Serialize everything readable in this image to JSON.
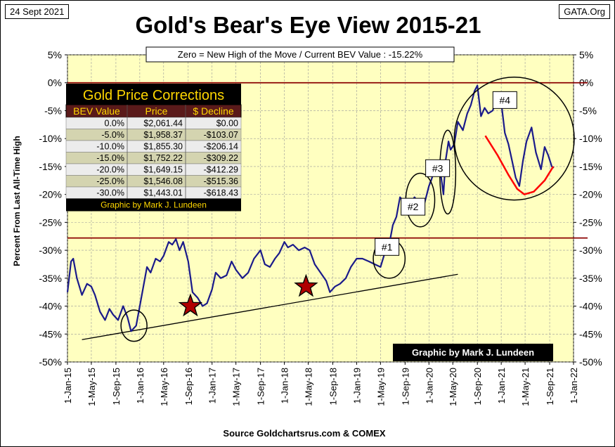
{
  "header": {
    "date": "24 Sept 2021",
    "site": "GATA.Org",
    "title": "Gold's Bear's Eye View 2015-21",
    "subtitle": "Zero = New High of the Move / Current  BEV Value : -15.22%"
  },
  "source": "Source Goldchartsrus.com & COMEX",
  "credit": "Graphic by Mark J. Lundeen",
  "colors": {
    "plot_bg": "#ffffc0",
    "series": "#1a1a8a",
    "resistance": "#8b0000",
    "red_curve": "#ff0000",
    "star": "#b00000",
    "table_bg": "#000000",
    "table_title": "#ffd700",
    "table_header_bg": "#5a1a1a",
    "table_row_light": "#ececec",
    "table_row_dark": "#d4d4b0"
  },
  "table": {
    "title": "Gold Price Corrections",
    "headers": [
      "BEV Value",
      "Price",
      "$ Decline"
    ],
    "rows": [
      [
        "0.0%",
        "$2,061.44",
        "$0.00"
      ],
      [
        "-5.0%",
        "$1,958.37",
        "-$103.07"
      ],
      [
        "-10.0%",
        "$1,855.30",
        "-$206.14"
      ],
      [
        "-15.0%",
        "$1,752.22",
        "-$309.22"
      ],
      [
        "-20.0%",
        "$1,649.15",
        "-$412.29"
      ],
      [
        "-25.0%",
        "$1,546.08",
        "-$515.36"
      ],
      [
        "-30.0%",
        "$1,443.01",
        "-$618.43"
      ]
    ],
    "footer": "Graphic by Mark J. Lundeen"
  },
  "annotations": [
    {
      "label": "#1",
      "x": 2019.42,
      "y": -29.4
    },
    {
      "label": "#2",
      "x": 2019.78,
      "y": -22.2
    },
    {
      "label": "#3",
      "x": 2020.12,
      "y": -15.3
    },
    {
      "label": "#4",
      "x": 2021.05,
      "y": -3.1
    }
  ],
  "chart_data": {
    "type": "line",
    "ylabel": "Percent  From  Last  All-Time  High",
    "xlabel": "",
    "xlim": [
      2015.0,
      2022.0
    ],
    "ylim": [
      -50,
      5
    ],
    "y_ticks": [
      5,
      0,
      -5,
      -10,
      -15,
      -20,
      -25,
      -30,
      -35,
      -40,
      -45,
      -50
    ],
    "y_tick_labels": [
      "5%",
      "0%",
      "-5%",
      "-10%",
      "-15%",
      "-20%",
      "-25%",
      "-30%",
      "-35%",
      "-40%",
      "-45%",
      "-50%"
    ],
    "x_ticks": [
      2015.0,
      2015.33,
      2015.67,
      2016.0,
      2016.33,
      2016.67,
      2017.0,
      2017.33,
      2017.67,
      2018.0,
      2018.33,
      2018.67,
      2019.0,
      2019.33,
      2019.67,
      2020.0,
      2020.33,
      2020.67,
      2021.0,
      2021.33,
      2021.67,
      2022.0
    ],
    "x_tick_labels": [
      "1-Jan-15",
      "1-May-15",
      "1-Sep-15",
      "1-Jan-16",
      "1-May-16",
      "1-Sep-16",
      "1-Jan-17",
      "1-May-17",
      "1-Sep-17",
      "1-Jan-18",
      "1-May-18",
      "1-Sep-18",
      "1-Jan-19",
      "1-May-19",
      "1-Sep-19",
      "1-Jan-20",
      "1-May-20",
      "1-Sep-20",
      "1-Jan-21",
      "1-May-21",
      "1-Sep-21",
      "1-Jan-22"
    ],
    "grid": true,
    "series": [
      {
        "x": [
          2015.0,
          2015.05,
          2015.08,
          2015.13,
          2015.2,
          2015.27,
          2015.33,
          2015.38,
          2015.45,
          2015.52,
          2015.58,
          2015.63,
          2015.7,
          2015.77,
          2015.83,
          2015.88,
          2015.95,
          2016.0,
          2016.05,
          2016.1,
          2016.15,
          2016.22,
          2016.28,
          2016.33,
          2016.4,
          2016.45,
          2016.5,
          2016.55,
          2016.6,
          2016.67,
          2016.73,
          2016.8,
          2016.87,
          2016.93,
          2017.0,
          2017.05,
          2017.12,
          2017.2,
          2017.27,
          2017.33,
          2017.42,
          2017.5,
          2017.58,
          2017.67,
          2017.73,
          2017.8,
          2017.87,
          2017.93,
          2018.0,
          2018.05,
          2018.12,
          2018.2,
          2018.28,
          2018.35,
          2018.42,
          2018.5,
          2018.58,
          2018.63,
          2018.7,
          2018.77,
          2018.85,
          2018.92,
          2019.0,
          2019.08,
          2019.17,
          2019.25,
          2019.33,
          2019.4,
          2019.45,
          2019.5,
          2019.55,
          2019.6,
          2019.67,
          2019.73,
          2019.8,
          2019.87,
          2019.93,
          2020.0,
          2020.03,
          2020.08,
          2020.13,
          2020.17,
          2020.2,
          2020.23,
          2020.27,
          2020.3,
          2020.35,
          2020.4,
          2020.47,
          2020.53,
          2020.58,
          2020.63,
          2020.67,
          2020.72,
          2020.77,
          2020.82,
          2020.88,
          2020.93,
          2021.0,
          2021.05,
          2021.1,
          2021.15,
          2021.2,
          2021.25,
          2021.3,
          2021.35,
          2021.42,
          2021.48,
          2021.55,
          2021.6,
          2021.65,
          2021.7,
          2021.73
        ],
        "y": [
          -37.5,
          -32.0,
          -31.5,
          -35.0,
          -38.0,
          -36.0,
          -36.5,
          -38.0,
          -41.0,
          -42.5,
          -40.5,
          -41.5,
          -42.5,
          -40.0,
          -42.0,
          -44.5,
          -43.5,
          -40.0,
          -36.5,
          -33.0,
          -34.0,
          -31.5,
          -32.0,
          -31.0,
          -28.5,
          -29.0,
          -28.0,
          -30.0,
          -28.5,
          -32.0,
          -37.5,
          -38.5,
          -40.0,
          -39.5,
          -37.0,
          -34.0,
          -35.0,
          -34.5,
          -32.0,
          -33.5,
          -35.0,
          -34.0,
          -31.5,
          -30.0,
          -32.5,
          -33.0,
          -31.5,
          -30.5,
          -28.5,
          -29.5,
          -29.0,
          -30.0,
          -29.5,
          -30.0,
          -32.5,
          -34.0,
          -35.5,
          -37.5,
          -36.5,
          -36.0,
          -35.0,
          -33.0,
          -31.5,
          -31.5,
          -32.0,
          -32.5,
          -33.0,
          -30.0,
          -29.0,
          -25.5,
          -24.0,
          -20.5,
          -21.5,
          -22.0,
          -20.5,
          -21.5,
          -22.0,
          -18.5,
          -17.5,
          -15.5,
          -16.0,
          -17.0,
          -20.0,
          -14.0,
          -10.5,
          -12.0,
          -11.0,
          -7.0,
          -8.5,
          -5.5,
          -4.0,
          -1.5,
          -0.5,
          -6.0,
          -4.5,
          -5.5,
          -5.0,
          -3.5,
          -3.5,
          -9.0,
          -11.0,
          -14.0,
          -17.0,
          -18.5,
          -14.0,
          -10.5,
          -8.0,
          -12.5,
          -15.5,
          -11.5,
          -13.0,
          -15.0,
          -15.2
        ]
      }
    ],
    "resistance_levels": [
      0,
      -27.8
    ],
    "trend_line": {
      "x": [
        2015.2,
        2020.4
      ],
      "y": [
        -46.0,
        -34.3
      ]
    },
    "red_curve": {
      "x": [
        2020.78,
        2020.95,
        2021.1,
        2021.22,
        2021.32,
        2021.45,
        2021.6,
        2021.72
      ],
      "y": [
        -9.5,
        -13.0,
        -16.5,
        -19.0,
        -20.0,
        -19.5,
        -17.5,
        -15.0
      ]
    },
    "circles": [
      {
        "cx": 2015.92,
        "cy": -43.5,
        "rx": 0.18,
        "ry": 2.8
      },
      {
        "cx": 2019.45,
        "cy": -31.5,
        "rx": 0.22,
        "ry": 3.5
      },
      {
        "cx": 2019.88,
        "cy": -21.0,
        "rx": 0.2,
        "ry": 4.8
      },
      {
        "cx": 2020.26,
        "cy": -16.0,
        "rx": 0.11,
        "ry": 7.5
      },
      {
        "cx": 2021.18,
        "cy": -10.0,
        "rx": 0.83,
        "ry": 11.0
      }
    ],
    "stars": [
      {
        "x": 2016.7,
        "y": -40.0
      },
      {
        "x": 2018.3,
        "y": -36.5
      }
    ]
  }
}
